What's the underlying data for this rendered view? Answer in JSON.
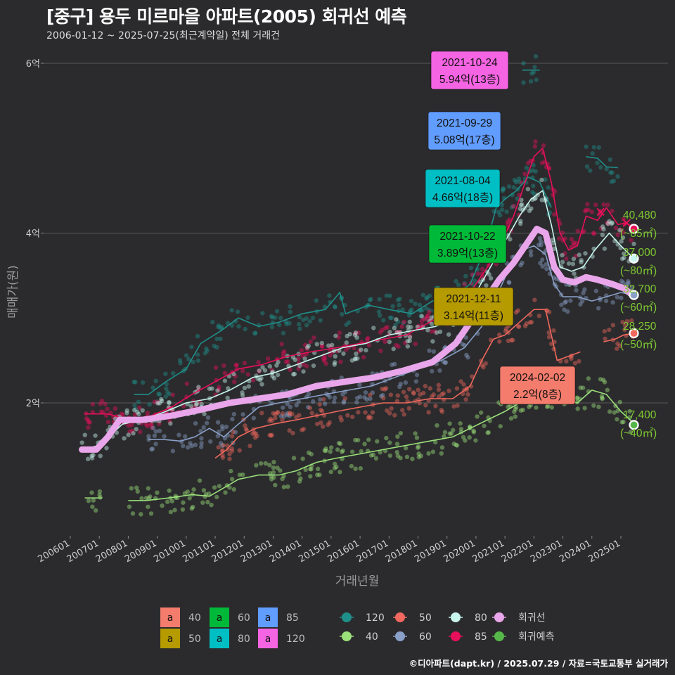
{
  "title": "[중구] 용두 미르마을 아파트(2005) 회귀선 예측",
  "subtitle": "2006-01-12 ~ 2025-07-25(최근계약일) 전체 거래건",
  "caption": "©디아파트(dapt.kr) / 2025.07.29 / 자료=국토교통부 실거래가",
  "colors": {
    "bg": "#2b2b2d",
    "s40": "#9be07a",
    "s50": "#f0685e",
    "s60": "#8aa0c8",
    "s80": "#c8f5ee",
    "s85": "#e8105a",
    "s120": "#1f8f8a",
    "reg": "#eaa6ea",
    "pred": "#57b84a",
    "c40": "#f47c6d",
    "c50": "#b59a00",
    "c60": "#00b938",
    "c80": "#00bfc4",
    "c85": "#619cff",
    "c120": "#f564e3"
  },
  "chart_data": {
    "type": "line",
    "xlabel": "거래년월",
    "ylabel": "매매가(원)",
    "x_range": [
      2006.0,
      2025.6
    ],
    "ylim": [
      0.6,
      6.3
    ],
    "y_ticks": [
      {
        "v": 2,
        "label": "2억"
      },
      {
        "v": 4,
        "label": "4억"
      },
      {
        "v": 6,
        "label": "6억"
      }
    ],
    "x_ticks": [
      "200601",
      "200701",
      "200801",
      "200901",
      "201001",
      "201101",
      "201201",
      "201301",
      "201401",
      "201501",
      "201601",
      "201701",
      "201801",
      "201901",
      "202001",
      "202101",
      "202201",
      "202301",
      "202401",
      "202501"
    ],
    "series": [
      {
        "name": "120",
        "color": "#1f8f8a",
        "points": [
          [
            2008.2,
            2.1
          ],
          [
            2008.7,
            2.1
          ],
          [
            2009.3,
            2.25
          ],
          [
            2010.0,
            2.4
          ],
          [
            2010.5,
            2.7
          ],
          [
            2011.2,
            2.85
          ],
          [
            2011.8,
            3.0
          ],
          [
            2012.5,
            2.9
          ],
          [
            2013.2,
            2.95
          ],
          [
            2014.0,
            3.05
          ],
          [
            2014.8,
            3.1
          ],
          [
            2015.3,
            3.3
          ],
          [
            2015.5,
            3.05
          ],
          [
            2016.3,
            3.15
          ],
          [
            2017.0,
            3.1
          ],
          [
            2017.8,
            3.05
          ],
          [
            2018.5,
            3.2
          ],
          [
            2019.2,
            3.25
          ],
          [
            2019.8,
            3.4
          ],
          [
            2020.3,
            3.8
          ],
          [
            2020.7,
            4.3
          ],
          [
            2021.0,
            4.4
          ],
          [
            2021.4,
            4.5
          ],
          [
            2021.8,
            4.66
          ],
          [
            2022.2,
            4.6
          ],
          [
            2022.6,
            4.3
          ]
        ]
      },
      {
        "name": "120b",
        "color": "#1f8f8a",
        "points": [
          [
            2021.6,
            5.92
          ],
          [
            2022.2,
            5.92
          ]
        ]
      },
      {
        "name": "120c",
        "color": "#1f8f8a",
        "points": [
          [
            2023.8,
            4.9
          ],
          [
            2024.2,
            4.88
          ],
          [
            2024.5,
            4.78
          ],
          [
            2024.9,
            4.77
          ]
        ]
      },
      {
        "name": "85",
        "color": "#e8105a",
        "points": [
          [
            2006.5,
            1.87
          ],
          [
            2007.3,
            1.87
          ],
          [
            2008.0,
            1.8
          ],
          [
            2008.8,
            1.85
          ],
          [
            2009.5,
            1.95
          ],
          [
            2010.2,
            2.1
          ],
          [
            2011.0,
            2.25
          ],
          [
            2011.8,
            2.4
          ],
          [
            2012.6,
            2.45
          ],
          [
            2013.5,
            2.55
          ],
          [
            2014.3,
            2.6
          ],
          [
            2015.2,
            2.65
          ],
          [
            2016.0,
            2.7
          ],
          [
            2016.8,
            2.75
          ],
          [
            2017.6,
            2.8
          ],
          [
            2018.4,
            2.95
          ],
          [
            2019.2,
            3.1
          ],
          [
            2019.8,
            3.3
          ],
          [
            2020.4,
            3.6
          ],
          [
            2020.9,
            3.9
          ],
          [
            2021.3,
            4.2
          ],
          [
            2021.7,
            4.6
          ],
          [
            2022.0,
            4.9
          ],
          [
            2022.3,
            5.0
          ],
          [
            2022.6,
            4.6
          ],
          [
            2022.9,
            4.0
          ],
          [
            2023.2,
            3.8
          ],
          [
            2023.5,
            3.85
          ],
          [
            2023.8,
            4.2
          ],
          [
            2024.2,
            4.15
          ],
          [
            2024.5,
            4.3
          ],
          [
            2024.9,
            4.1
          ],
          [
            2025.2,
            4.12
          ],
          [
            2025.45,
            4.05
          ]
        ]
      },
      {
        "name": "80",
        "color": "#c8f5ee",
        "points": [
          [
            2006.4,
            1.45
          ],
          [
            2007.0,
            1.5
          ],
          [
            2007.8,
            1.75
          ],
          [
            2008.5,
            1.8
          ],
          [
            2009.3,
            1.9
          ],
          [
            2010.0,
            2.0
          ],
          [
            2010.8,
            2.05
          ],
          [
            2011.5,
            2.15
          ],
          [
            2012.3,
            2.3
          ],
          [
            2013.0,
            2.35
          ],
          [
            2013.8,
            2.45
          ],
          [
            2014.6,
            2.55
          ],
          [
            2015.4,
            2.65
          ],
          [
            2016.2,
            2.7
          ],
          [
            2017.0,
            2.8
          ],
          [
            2017.8,
            2.85
          ],
          [
            2018.6,
            2.9
          ],
          [
            2019.4,
            3.0
          ],
          [
            2020.0,
            3.3
          ],
          [
            2020.5,
            3.6
          ],
          [
            2021.0,
            3.9
          ],
          [
            2021.5,
            4.2
          ],
          [
            2021.9,
            4.4
          ],
          [
            2022.3,
            4.5
          ],
          [
            2022.6,
            4.1
          ],
          [
            2022.9,
            3.6
          ],
          [
            2023.3,
            3.55
          ],
          [
            2023.7,
            3.6
          ],
          [
            2024.1,
            3.8
          ],
          [
            2024.6,
            4.0
          ],
          [
            2025.0,
            3.85
          ],
          [
            2025.45,
            3.7
          ]
        ]
      },
      {
        "name": "60",
        "color": "#8aa0c8",
        "points": [
          [
            2008.7,
            1.57
          ],
          [
            2009.2,
            1.57
          ],
          [
            2009.8,
            1.55
          ],
          [
            2010.3,
            1.6
          ],
          [
            2010.8,
            1.7
          ],
          [
            2011.3,
            1.6
          ],
          [
            2011.8,
            1.75
          ],
          [
            2012.5,
            1.95
          ],
          [
            2013.2,
            2.0
          ],
          [
            2014.0,
            2.05
          ],
          [
            2014.8,
            2.1
          ],
          [
            2015.6,
            2.15
          ],
          [
            2016.4,
            2.2
          ],
          [
            2017.2,
            2.3
          ],
          [
            2018.0,
            2.4
          ],
          [
            2018.8,
            2.5
          ],
          [
            2019.6,
            2.65
          ],
          [
            2020.2,
            2.9
          ],
          [
            2020.7,
            3.25
          ],
          [
            2021.1,
            3.55
          ],
          [
            2021.6,
            3.8
          ],
          [
            2022.0,
            3.85
          ],
          [
            2022.4,
            3.75
          ],
          [
            2022.7,
            3.4
          ],
          [
            2023.0,
            3.25
          ],
          [
            2023.5,
            3.25
          ],
          [
            2024.0,
            3.2
          ],
          [
            2024.5,
            3.25
          ],
          [
            2025.0,
            3.3
          ],
          [
            2025.45,
            3.27
          ]
        ]
      },
      {
        "name": "50",
        "color": "#f0685e",
        "points": [
          [
            2011.0,
            1.35
          ],
          [
            2011.4,
            1.45
          ],
          [
            2011.8,
            1.6
          ],
          [
            2012.4,
            1.7
          ],
          [
            2013.0,
            1.75
          ],
          [
            2013.8,
            1.8
          ],
          [
            2014.5,
            1.85
          ],
          [
            2015.2,
            1.9
          ],
          [
            2016.0,
            1.95
          ],
          [
            2016.8,
            2.0
          ],
          [
            2017.6,
            2.0
          ],
          [
            2018.4,
            2.05
          ],
          [
            2019.2,
            2.05
          ],
          [
            2019.8,
            2.2
          ],
          [
            2020.2,
            2.5
          ],
          [
            2020.6,
            2.75
          ],
          [
            2021.0,
            2.8
          ],
          [
            2021.5,
            2.95
          ],
          [
            2022.0,
            3.1
          ],
          [
            2022.4,
            3.1
          ],
          [
            2022.8,
            2.5
          ],
          [
            2023.2,
            2.55
          ],
          [
            2023.6,
            2.6
          ]
        ]
      },
      {
        "name": "50b",
        "color": "#f0685e",
        "points": [
          [
            2024.4,
            2.72
          ],
          [
            2024.8,
            2.75
          ],
          [
            2025.1,
            2.8
          ],
          [
            2025.45,
            2.82
          ]
        ]
      },
      {
        "name": "40",
        "color": "#9be07a",
        "points": [
          [
            2006.5,
            0.88
          ],
          [
            2007.1,
            0.88
          ]
        ]
      },
      {
        "name": "40b",
        "color": "#9be07a",
        "points": [
          [
            2008.0,
            0.85
          ],
          [
            2008.6,
            0.85
          ],
          [
            2009.4,
            0.88
          ],
          [
            2010.2,
            0.92
          ],
          [
            2010.8,
            0.9
          ],
          [
            2011.3,
            1.0
          ],
          [
            2011.8,
            1.1
          ],
          [
            2012.5,
            1.15
          ],
          [
            2013.2,
            1.15
          ],
          [
            2013.8,
            1.2
          ],
          [
            2014.5,
            1.3
          ],
          [
            2015.2,
            1.35
          ],
          [
            2016.0,
            1.4
          ],
          [
            2016.8,
            1.45
          ],
          [
            2017.6,
            1.5
          ],
          [
            2018.4,
            1.55
          ],
          [
            2019.2,
            1.6
          ],
          [
            2019.8,
            1.7
          ],
          [
            2020.4,
            1.8
          ],
          [
            2021.0,
            1.9
          ],
          [
            2021.5,
            2.0
          ],
          [
            2022.0,
            2.05
          ],
          [
            2022.5,
            2.1
          ],
          [
            2023.0,
            2.05
          ],
          [
            2023.5,
            2.0
          ],
          [
            2024.0,
            2.15
          ],
          [
            2024.5,
            2.1
          ],
          [
            2025.0,
            1.9
          ],
          [
            2025.45,
            1.76
          ]
        ]
      }
    ],
    "regression": [
      [
        2006.4,
        1.45
      ],
      [
        2006.9,
        1.45
      ],
      [
        2007.3,
        1.6
      ],
      [
        2007.7,
        1.8
      ],
      [
        2008.5,
        1.8
      ],
      [
        2009.5,
        1.85
      ],
      [
        2010.5,
        1.92
      ],
      [
        2011.5,
        2.0
      ],
      [
        2012.5,
        2.05
      ],
      [
        2013.5,
        2.1
      ],
      [
        2014.5,
        2.2
      ],
      [
        2015.5,
        2.25
      ],
      [
        2016.5,
        2.3
      ],
      [
        2017.5,
        2.38
      ],
      [
        2018.5,
        2.48
      ],
      [
        2019.3,
        2.7
      ],
      [
        2019.8,
        2.95
      ],
      [
        2020.3,
        3.2
      ],
      [
        2020.8,
        3.45
      ],
      [
        2021.3,
        3.65
      ],
      [
        2021.8,
        3.9
      ],
      [
        2022.1,
        4.05
      ],
      [
        2022.4,
        4.0
      ],
      [
        2022.7,
        3.6
      ],
      [
        2023.0,
        3.45
      ],
      [
        2023.4,
        3.42
      ],
      [
        2023.8,
        3.48
      ],
      [
        2024.2,
        3.45
      ],
      [
        2024.7,
        3.4
      ],
      [
        2025.1,
        3.35
      ],
      [
        2025.4,
        3.27
      ]
    ],
    "endpoints": [
      {
        "label": "40,480",
        "area": "(~85㎡)",
        "value": 4.05,
        "color": "#e8105a"
      },
      {
        "label": "37,000",
        "area": "(~80㎡)",
        "value": 3.7,
        "color": "#c8f5ee"
      },
      {
        "label": "32,700",
        "area": "(~60㎡)",
        "value": 3.27,
        "color": "#8aa0c8"
      },
      {
        "label": "28,250",
        "area": "(~50㎡)",
        "value": 2.82,
        "color": "#f0685e"
      },
      {
        "label": "17,400",
        "area": "(~40㎡)",
        "value": 1.74,
        "color": "#57b84a"
      }
    ],
    "callouts": [
      {
        "date": "2021-10-24",
        "price": "5.94억(13층)",
        "color": "#f564e3",
        "series": "120"
      },
      {
        "date": "2021-09-29",
        "price": "5.08억(17층)",
        "color": "#619cff",
        "series": "85"
      },
      {
        "date": "2021-08-04",
        "price": "4.66억(18층)",
        "color": "#00bfc4",
        "series": "80"
      },
      {
        "date": "2021-10-22",
        "price": "3.89억(13층)",
        "color": "#00b938",
        "series": "60"
      },
      {
        "date": "2021-12-11",
        "price": "3.14억(11층)",
        "color": "#b59a00",
        "series": "50"
      },
      {
        "date": "2024-02-02",
        "price": "2.2억(8층)",
        "color": "#f47c6d",
        "series": "40"
      }
    ]
  },
  "legend": {
    "fill": [
      {
        "glyph": "a",
        "label": "40",
        "color": "#f47c6d"
      },
      {
        "glyph": "a",
        "label": "50",
        "color": "#b59a00"
      },
      {
        "glyph": "a",
        "label": "60",
        "color": "#00b938"
      },
      {
        "glyph": "a",
        "label": "80",
        "color": "#00bfc4"
      },
      {
        "glyph": "a",
        "label": "85",
        "color": "#619cff"
      },
      {
        "glyph": "a",
        "label": "120",
        "color": "#f564e3"
      }
    ],
    "line": [
      {
        "label": "120",
        "color": "#1f8f8a"
      },
      {
        "label": "50",
        "color": "#f0685e"
      },
      {
        "label": "80",
        "color": "#c8f5ee"
      },
      {
        "label": "회귀선",
        "color": "#eaa6ea"
      },
      {
        "label": "40",
        "color": "#9be07a"
      },
      {
        "label": "60",
        "color": "#8aa0c8"
      },
      {
        "label": "85",
        "color": "#e8105a"
      },
      {
        "label": "회귀예측",
        "color": "#57b84a"
      }
    ]
  }
}
